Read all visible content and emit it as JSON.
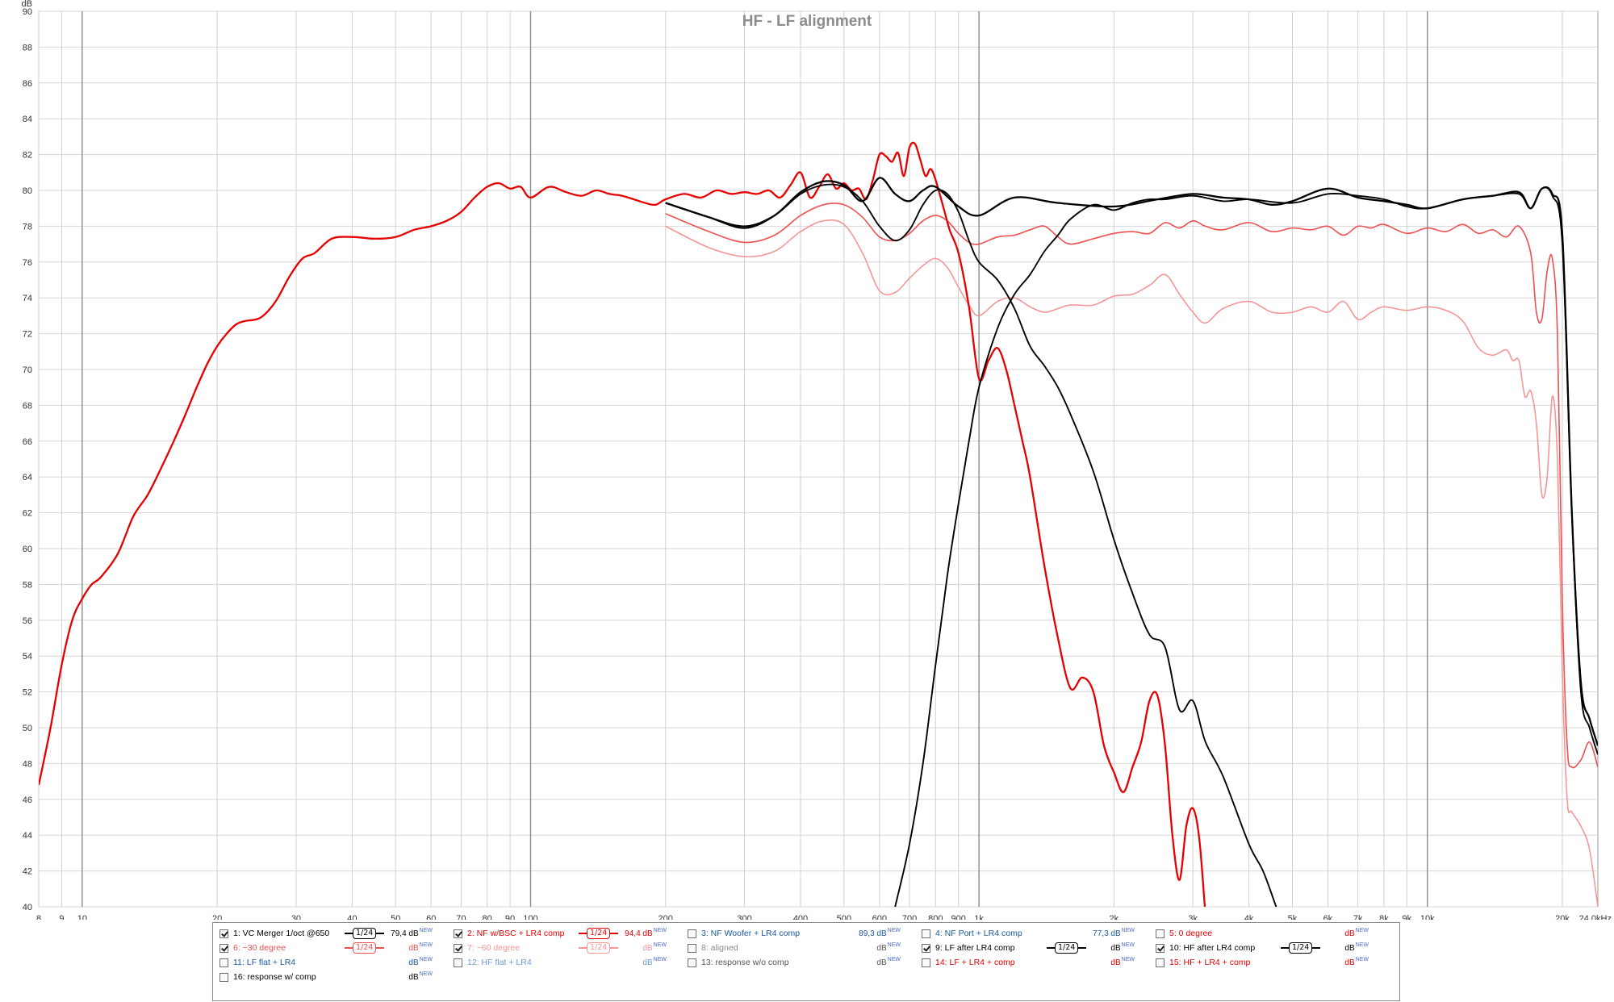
{
  "chart_data": {
    "type": "line",
    "title": "HF - LF alignment",
    "ylabel": "dB",
    "xunit": "kHz",
    "xscale": "log",
    "xlim": [
      8,
      24000
    ],
    "ylim": [
      40,
      90
    ],
    "grid": true,
    "x_ticks": [
      {
        "v": 8,
        "label": "8"
      },
      {
        "v": 9,
        "label": "9"
      },
      {
        "v": 10,
        "label": "10"
      },
      {
        "v": 20,
        "label": "20"
      },
      {
        "v": 30,
        "label": "30"
      },
      {
        "v": 40,
        "label": "40"
      },
      {
        "v": 50,
        "label": "50"
      },
      {
        "v": 60,
        "label": "60"
      },
      {
        "v": 70,
        "label": "70"
      },
      {
        "v": 80,
        "label": "80"
      },
      {
        "v": 90,
        "label": "90"
      },
      {
        "v": 100,
        "label": "100"
      },
      {
        "v": 200,
        "label": "200"
      },
      {
        "v": 300,
        "label": "300"
      },
      {
        "v": 400,
        "label": "400"
      },
      {
        "v": 500,
        "label": "500"
      },
      {
        "v": 600,
        "label": "600"
      },
      {
        "v": 700,
        "label": "700"
      },
      {
        "v": 800,
        "label": "800"
      },
      {
        "v": 900,
        "label": "900"
      },
      {
        "v": 1000,
        "label": "1k"
      },
      {
        "v": 2000,
        "label": "2k"
      },
      {
        "v": 3000,
        "label": "3k"
      },
      {
        "v": 4000,
        "label": "4k"
      },
      {
        "v": 5000,
        "label": "5k"
      },
      {
        "v": 6000,
        "label": "6k"
      },
      {
        "v": 7000,
        "label": "7k"
      },
      {
        "v": 8000,
        "label": "8k"
      },
      {
        "v": 9000,
        "label": "9k"
      },
      {
        "v": 10000,
        "label": "10k"
      },
      {
        "v": 20000,
        "label": "20k"
      },
      {
        "v": 24000,
        "label": "24,0kHz"
      }
    ],
    "y_ticks": [
      "40",
      "42",
      "44",
      "46",
      "48",
      "50",
      "52",
      "54",
      "56",
      "58",
      "60",
      "62",
      "64",
      "66",
      "68",
      "70",
      "72",
      "74",
      "76",
      "78",
      "80",
      "82",
      "84",
      "86",
      "88",
      "90"
    ],
    "series": [
      {
        "name": "1: VC Merger 1/oct @650",
        "color": "#000000",
        "width": 2.3,
        "x": [
          200,
          250,
          300,
          350,
          400,
          450,
          500,
          550,
          600,
          650,
          700,
          750,
          800,
          900,
          1000,
          1200,
          1500,
          2000,
          2500,
          3000,
          3500,
          4000,
          4500,
          5000,
          6000,
          7000,
          8000,
          9000,
          10000,
          12000,
          14000,
          16000,
          17000,
          18000,
          19000,
          20000,
          21000,
          22000,
          23000,
          24000
        ],
        "y": [
          79.3,
          78.5,
          77.9,
          78.6,
          79.9,
          80.5,
          80.3,
          79.4,
          80.7,
          79.8,
          79.4,
          80.0,
          80.2,
          79.1,
          78.6,
          79.6,
          79.3,
          79.1,
          79.5,
          79.8,
          79.6,
          79.5,
          79.2,
          79.4,
          80.1,
          79.6,
          79.4,
          79.2,
          79.0,
          79.5,
          79.7,
          79.9,
          79.0,
          80.1,
          79.8,
          77.5,
          62.0,
          52.5,
          50.5,
          49.0
        ]
      },
      {
        "name": "2: NF w/BSC + LR4 comp",
        "color": "#e60000",
        "width": 2.3,
        "x": [
          8,
          8.5,
          9,
          9.5,
          10,
          10.5,
          11,
          12,
          13,
          14,
          15,
          16,
          17,
          18,
          19,
          20,
          21,
          22,
          23,
          25,
          27,
          29,
          31,
          33,
          36,
          40,
          45,
          50,
          55,
          60,
          65,
          70,
          75,
          80,
          85,
          90,
          95,
          100,
          110,
          120,
          130,
          140,
          150,
          160,
          170,
          180,
          190,
          200,
          220,
          240,
          260,
          280,
          300,
          320,
          340,
          360,
          380,
          400,
          420,
          440,
          460,
          480,
          500,
          520,
          540,
          560,
          580,
          600,
          620,
          640,
          660,
          680,
          700,
          720,
          740,
          760,
          780,
          800,
          830,
          860,
          900,
          950,
          1000,
          1050,
          1100,
          1150,
          1200,
          1250,
          1300,
          1400,
          1500,
          1600,
          1700,
          1800,
          1900,
          2000,
          2100,
          2200,
          2300,
          2400,
          2500,
          2600,
          2700,
          2800,
          2900,
          3000,
          3100,
          3200
        ],
        "y": [
          46.8,
          50.0,
          53.5,
          56.0,
          57.2,
          58.0,
          58.4,
          59.7,
          61.8,
          63.0,
          64.5,
          66.0,
          67.5,
          69.0,
          70.3,
          71.3,
          72.0,
          72.5,
          72.7,
          72.9,
          73.8,
          75.2,
          76.2,
          76.5,
          77.3,
          77.4,
          77.3,
          77.4,
          77.8,
          78.0,
          78.3,
          78.8,
          79.6,
          80.2,
          80.4,
          80.1,
          80.2,
          79.6,
          80.2,
          79.9,
          79.7,
          80.0,
          79.8,
          79.7,
          79.5,
          79.3,
          79.2,
          79.5,
          79.8,
          79.6,
          80.0,
          79.8,
          79.9,
          79.8,
          80.0,
          79.6,
          80.3,
          81.0,
          79.6,
          80.2,
          80.9,
          80.1,
          80.4,
          80.0,
          80.1,
          79.5,
          80.6,
          82.0,
          81.9,
          81.6,
          82.1,
          80.8,
          82.4,
          82.6,
          81.7,
          80.8,
          81.2,
          80.6,
          79.2,
          77.8,
          76.5,
          73.5,
          69.5,
          70.5,
          71.2,
          70.0,
          68.0,
          66.0,
          64.0,
          59.0,
          55.0,
          52.2,
          52.8,
          52.0,
          49.0,
          47.5,
          46.4,
          47.8,
          49.2,
          51.5,
          51.8,
          49.0,
          44.0,
          41.5,
          44.5,
          45.5,
          43.8,
          39.5
        ]
      },
      {
        "name": "6: ~30 degree",
        "color": "#ee5050",
        "width": 1.6,
        "x": [
          200,
          250,
          300,
          350,
          400,
          450,
          500,
          550,
          600,
          650,
          700,
          750,
          800,
          850,
          900,
          950,
          1000,
          1100,
          1200,
          1300,
          1400,
          1500,
          1600,
          1800,
          2000,
          2200,
          2400,
          2600,
          2800,
          3000,
          3200,
          3500,
          4000,
          4500,
          5000,
          5500,
          6000,
          6500,
          7000,
          7500,
          8000,
          9000,
          10000,
          11000,
          12000,
          13000,
          14000,
          15000,
          16000,
          17000,
          17500,
          18000,
          18500,
          19000,
          19500,
          20000,
          20500,
          21000,
          22000,
          23000,
          24000
        ],
        "y": [
          78.7,
          77.7,
          77.1,
          77.5,
          78.6,
          79.2,
          79.2,
          78.5,
          77.4,
          77.2,
          77.6,
          78.3,
          78.6,
          78.3,
          77.6,
          77.1,
          77.0,
          77.4,
          77.5,
          77.8,
          78.0,
          77.4,
          77.0,
          77.3,
          77.6,
          77.7,
          77.6,
          78.2,
          77.9,
          78.3,
          78.0,
          77.8,
          78.2,
          77.7,
          77.9,
          77.8,
          78.0,
          77.5,
          78.0,
          77.9,
          78.1,
          77.6,
          77.9,
          77.7,
          78.1,
          77.6,
          77.8,
          77.4,
          78.0,
          76.5,
          73.2,
          72.8,
          75.5,
          76.2,
          72.0,
          57.0,
          49.0,
          47.8,
          48.2,
          49.2,
          47.8
        ]
      },
      {
        "name": "7: ~60 degree",
        "color": "#f59696",
        "width": 1.6,
        "x": [
          200,
          250,
          300,
          350,
          400,
          450,
          500,
          550,
          600,
          650,
          700,
          750,
          800,
          850,
          900,
          950,
          1000,
          1100,
          1200,
          1300,
          1400,
          1500,
          1600,
          1800,
          2000,
          2200,
          2400,
          2600,
          2800,
          3000,
          3200,
          3500,
          4000,
          4500,
          5000,
          5500,
          6000,
          6500,
          7000,
          7500,
          8000,
          9000,
          10000,
          11000,
          12000,
          13000,
          14000,
          15000,
          15500,
          16000,
          16500,
          17000,
          17500,
          18000,
          18500,
          19000,
          19500,
          20000,
          20500,
          21000,
          22000,
          23000,
          24000
        ],
        "y": [
          78.0,
          76.8,
          76.3,
          76.6,
          77.7,
          78.3,
          78.1,
          76.5,
          74.4,
          74.3,
          75.1,
          75.8,
          76.2,
          75.7,
          74.6,
          73.6,
          73.0,
          73.8,
          74.0,
          73.5,
          73.2,
          73.4,
          73.6,
          73.6,
          74.1,
          74.2,
          74.7,
          75.3,
          74.2,
          73.2,
          72.6,
          73.4,
          73.8,
          73.2,
          73.2,
          73.5,
          73.2,
          73.8,
          72.8,
          73.2,
          73.5,
          73.3,
          73.5,
          73.3,
          72.7,
          71.2,
          70.8,
          71.1,
          70.5,
          70.5,
          68.5,
          68.8,
          67.0,
          63.0,
          64.0,
          68.5,
          65.0,
          53.0,
          46.0,
          45.3,
          44.5,
          43.2,
          40.0
        ]
      },
      {
        "name": "9: LF after LR4 comp",
        "color": "#000000",
        "width": 1.9,
        "x": [
          200,
          250,
          300,
          350,
          400,
          450,
          500,
          550,
          600,
          650,
          700,
          750,
          800,
          850,
          900,
          950,
          1000,
          1100,
          1200,
          1300,
          1400,
          1500,
          1600,
          1800,
          2000,
          2200,
          2400,
          2600,
          2800,
          3000,
          3200,
          3500,
          4000,
          4300,
          4600
        ],
        "y": [
          79.3,
          78.5,
          78.0,
          78.6,
          79.8,
          80.3,
          80.2,
          79.4,
          78.0,
          77.2,
          77.8,
          79.2,
          80.0,
          79.8,
          78.8,
          77.2,
          76.0,
          75.0,
          73.4,
          71.3,
          70.2,
          69.0,
          67.5,
          64.3,
          60.5,
          57.5,
          55.2,
          54.5,
          51.0,
          51.5,
          49.2,
          47.3,
          43.5,
          42.0,
          40.0
        ]
      },
      {
        "name": "10: HF after LR4 comp",
        "color": "#000000",
        "width": 1.9,
        "x": [
          650,
          700,
          750,
          800,
          850,
          900,
          950,
          1000,
          1100,
          1200,
          1300,
          1400,
          1500,
          1600,
          1800,
          2000,
          2200,
          2400,
          2600,
          3000,
          3500,
          4000,
          5000,
          6000,
          7000,
          8000,
          9000,
          10000,
          12000,
          14000,
          16000,
          17000,
          18000,
          19000,
          20000,
          21000,
          22000,
          23000,
          24000
        ],
        "y": [
          40.0,
          43.5,
          48.0,
          53.5,
          58.5,
          62.5,
          66.0,
          69.0,
          72.3,
          74.2,
          75.3,
          76.6,
          77.5,
          78.4,
          79.2,
          78.9,
          79.3,
          79.5,
          79.5,
          79.7,
          79.4,
          79.5,
          79.3,
          79.8,
          79.7,
          79.5,
          79.1,
          79.0,
          79.5,
          79.7,
          79.8,
          79.0,
          80.1,
          79.7,
          77.0,
          62.0,
          52.0,
          50.0,
          48.5
        ]
      }
    ]
  },
  "legend": {
    "items": [
      {
        "label": "1: VC Merger 1/oct @650",
        "checked": true,
        "color": "#000000",
        "smooth": "1/24",
        "value": "79,4 dB",
        "new": "NEW",
        "value_color": "#000000"
      },
      {
        "label": "2: NF w/BSC + LR4 comp",
        "checked": true,
        "color": "#e60000",
        "smooth": "1/24",
        "value": "94,4 dB",
        "new": "NEW",
        "value_color": "#e60000"
      },
      {
        "label": "3: NF Woofer + LR4 comp",
        "checked": false,
        "color": "#1a5aa0",
        "smooth": "",
        "value": "89,3 dB",
        "new": "NEW",
        "value_color": "#1a5aa0"
      },
      {
        "label": "4: NF Port + LR4 comp",
        "checked": false,
        "color": "#1a5aa0",
        "smooth": "",
        "value": "77,3 dB",
        "new": "NEW",
        "value_color": "#1a5aa0"
      },
      {
        "label": "5: 0 degree",
        "checked": false,
        "color": "#e60000",
        "smooth": "",
        "value": "dB",
        "new": "NEW",
        "value_color": "#e60000"
      },
      {
        "label": "6: ~30 degree",
        "checked": true,
        "color": "#ee5050",
        "smooth": "1/24",
        "value": "dB",
        "new": "NEW",
        "value_color": "#ee5050"
      },
      {
        "label": "7: ~60 degree",
        "checked": true,
        "color": "#f59696",
        "smooth": "1/24",
        "value": "dB",
        "new": "NEW",
        "value_color": "#f59696"
      },
      {
        "label": "8: aligned",
        "checked": false,
        "color": "#8a8a8a",
        "smooth": "",
        "value": "dB",
        "new": "NEW",
        "value_color": "#555555"
      },
      {
        "label": "9: LF after LR4 comp",
        "checked": true,
        "color": "#000000",
        "smooth": "1/24",
        "value": "dB",
        "new": "NEW",
        "value_color": "#000000"
      },
      {
        "label": "10: HF after LR4 comp",
        "checked": true,
        "color": "#000000",
        "smooth": "1/24",
        "value": "dB",
        "new": "NEW",
        "value_color": "#000000"
      },
      {
        "label": "11: LF flat + LR4",
        "checked": false,
        "color": "#1a5aa0",
        "smooth": "",
        "value": "dB",
        "new": "NEW",
        "value_color": "#1a5aa0"
      },
      {
        "label": "12: HF flat + LR4",
        "checked": false,
        "color": "#6a9ad8",
        "smooth": "",
        "value": "dB",
        "new": "NEW",
        "value_color": "#6a9ad8"
      },
      {
        "label": "13: response w/o comp",
        "checked": false,
        "color": "#555555",
        "smooth": "",
        "value": "dB",
        "new": "NEW",
        "value_color": "#555555"
      },
      {
        "label": "14: LF + LR4 + comp",
        "checked": false,
        "color": "#e60000",
        "smooth": "",
        "value": "dB",
        "new": "NEW",
        "value_color": "#e60000"
      },
      {
        "label": "15: HF + LR4 + comp",
        "checked": false,
        "color": "#e60000",
        "smooth": "",
        "value": "dB",
        "new": "NEW",
        "value_color": "#e60000"
      },
      {
        "label": "16: response w/ comp",
        "checked": false,
        "color": "#000000",
        "smooth": "",
        "value": "dB",
        "new": "NEW",
        "value_color": "#000000"
      }
    ]
  }
}
